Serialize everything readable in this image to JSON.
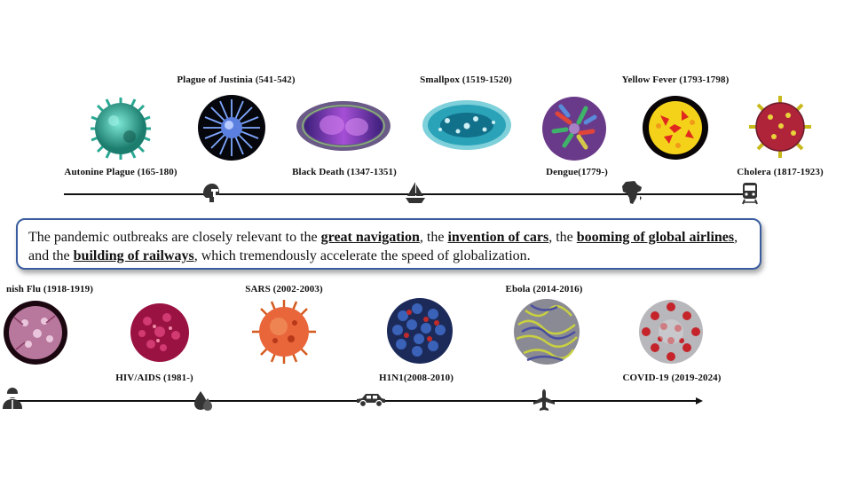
{
  "top_row": {
    "labels": [
      "Plague of Justinia (541-542)",
      "Smallpox (1519-1520)",
      "Yellow Fever (1793-1798)",
      "Autonine Plague (165-180)",
      "Black Death (1347-1351)",
      "Dengue(1779-)",
      "Cholera (1817-1923)"
    ]
  },
  "bottom_row": {
    "labels": [
      "nish Flu (1918-1919)",
      "SARS (2002-2003)",
      "Ebola (2014-2016)",
      "HIV/AIDS (1981-)",
      "H1N1(2008-2010)",
      "COVID-19 (2019-2024)"
    ]
  },
  "textbox": {
    "t1": "The pandemic outbreaks are closely relevant to the ",
    "k1": "great navigation",
    "t2": ", the ",
    "k2": "invention of cars",
    "t3": ", the ",
    "k3": "booming of global airlines",
    "t4": ", and the ",
    "k4": "building of railways",
    "t5": ", which tremendously accelerate the speed of globalization."
  },
  "icons": {
    "top": [
      "helmet-icon",
      "sailboat-icon",
      "africa-icon",
      "train-icon"
    ],
    "bottom": [
      "person-icon",
      "drop-icon",
      "car-icon",
      "airplane-icon"
    ]
  },
  "colors": {
    "box_border": "#3a5da0",
    "line": "#111111"
  }
}
